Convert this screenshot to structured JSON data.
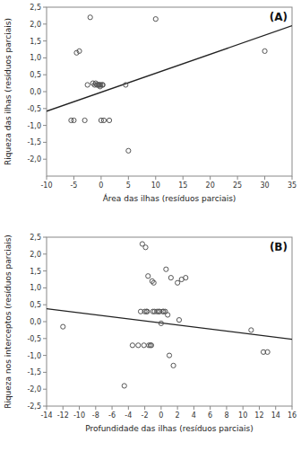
{
  "chart_data": [
    {
      "type": "scatter",
      "annotation": "(A)",
      "x_label": "Área das ilhas (resíduos parciais)",
      "y_label": "Riqueza das ilhas (resíduos parciais)",
      "xlim": [
        -10,
        35
      ],
      "ylim": [
        -2.5,
        2.5
      ],
      "xticks": [
        -10,
        -5,
        0,
        5,
        10,
        15,
        20,
        25,
        30,
        35
      ],
      "yticks": [
        {
          "value": -2.0,
          "label": "-2,0"
        },
        {
          "value": -1.5,
          "label": "-1,5"
        },
        {
          "value": -1.0,
          "label": "-1,0"
        },
        {
          "value": -0.5,
          "label": "-0,5"
        },
        {
          "value": 0.0,
          "label": "0,0"
        },
        {
          "value": 0.5,
          "label": "0,5"
        },
        {
          "value": 1.0,
          "label": "1,0"
        },
        {
          "value": 1.5,
          "label": "1,5"
        },
        {
          "value": 2.0,
          "label": "2,0"
        },
        {
          "value": 2.5,
          "label": "2,5"
        }
      ],
      "grid": false,
      "series": [
        {
          "type": "scatter",
          "marker": "circle",
          "color": "#555555",
          "x": [
            -5.5,
            -5.0,
            -4.5,
            -4.0,
            -3.0,
            -2.5,
            -2.0,
            -1.5,
            -1.2,
            -1.0,
            -0.8,
            -0.6,
            -0.4,
            -0.3,
            -0.2,
            -0.1,
            0.0,
            0.2,
            0.3,
            0.5,
            1.5,
            4.5,
            5.0,
            10.0,
            30.0
          ],
          "values": [
            -0.85,
            -0.85,
            1.15,
            1.2,
            -0.85,
            0.2,
            2.2,
            0.25,
            0.2,
            0.25,
            0.2,
            0.2,
            0.2,
            0.2,
            0.15,
            0.2,
            -0.85,
            0.2,
            0.2,
            -0.85,
            -0.85,
            0.2,
            -1.75,
            2.15,
            1.2
          ]
        },
        {
          "type": "line",
          "color": "#222222",
          "x": [
            -10,
            35
          ],
          "values": [
            -0.58,
            1.95
          ]
        }
      ]
    },
    {
      "type": "scatter",
      "annotation": "(B)",
      "x_label": "Profundidade das ilhas (resíduos parciais)",
      "y_label": "Riqueza nos interceptos (resíduos parciais)",
      "xlim": [
        -14,
        16
      ],
      "ylim": [
        -2.5,
        2.5
      ],
      "xticks": [
        -14,
        -12,
        -10,
        -8,
        -6,
        -4,
        -2,
        0,
        2,
        4,
        6,
        8,
        10,
        12,
        14,
        16
      ],
      "yticks": [
        {
          "value": -2.5,
          "label": "-2,5"
        },
        {
          "value": -2.0,
          "label": "-2,0"
        },
        {
          "value": -1.5,
          "label": "-1,5"
        },
        {
          "value": -1.0,
          "label": "-1,0"
        },
        {
          "value": -0.5,
          "label": "-0,5"
        },
        {
          "value": 0.0,
          "label": "0,0"
        },
        {
          "value": 0.5,
          "label": "0,5"
        },
        {
          "value": 1.0,
          "label": "1,0"
        },
        {
          "value": 1.5,
          "label": "1,5"
        },
        {
          "value": 2.0,
          "label": "2,0"
        },
        {
          "value": 2.5,
          "label": "2,5"
        }
      ],
      "grid": false,
      "series": [
        {
          "type": "scatter",
          "marker": "circle",
          "color": "#555555",
          "x": [
            -12.0,
            -4.5,
            -3.5,
            -2.8,
            -2.5,
            -2.3,
            -2.1,
            -2.0,
            -1.8,
            -1.7,
            -1.6,
            -1.5,
            -1.3,
            -1.2,
            -1.1,
            -1.0,
            -0.9,
            -0.8,
            -0.5,
            -0.3,
            -0.2,
            0.0,
            0.2,
            0.3,
            0.5,
            0.6,
            0.8,
            1.0,
            1.2,
            1.5,
            2.0,
            2.5,
            3.0,
            11.0,
            12.5,
            13.0,
            -1.9,
            2.2
          ],
          "values": [
            -0.15,
            -1.9,
            -0.7,
            -0.7,
            0.3,
            2.3,
            -0.7,
            0.3,
            0.3,
            0.3,
            1.35,
            -0.7,
            -0.7,
            -0.7,
            1.2,
            0.3,
            1.15,
            0.3,
            0.3,
            0.3,
            0.3,
            -0.05,
            0.3,
            0.3,
            0.3,
            1.55,
            0.2,
            -1.0,
            1.3,
            -1.3,
            1.15,
            1.25,
            1.3,
            -0.25,
            -0.9,
            -0.9,
            2.2,
            0.05
          ]
        },
        {
          "type": "line",
          "color": "#222222",
          "x": [
            -14,
            16
          ],
          "values": [
            0.38,
            -0.52
          ]
        }
      ]
    }
  ]
}
